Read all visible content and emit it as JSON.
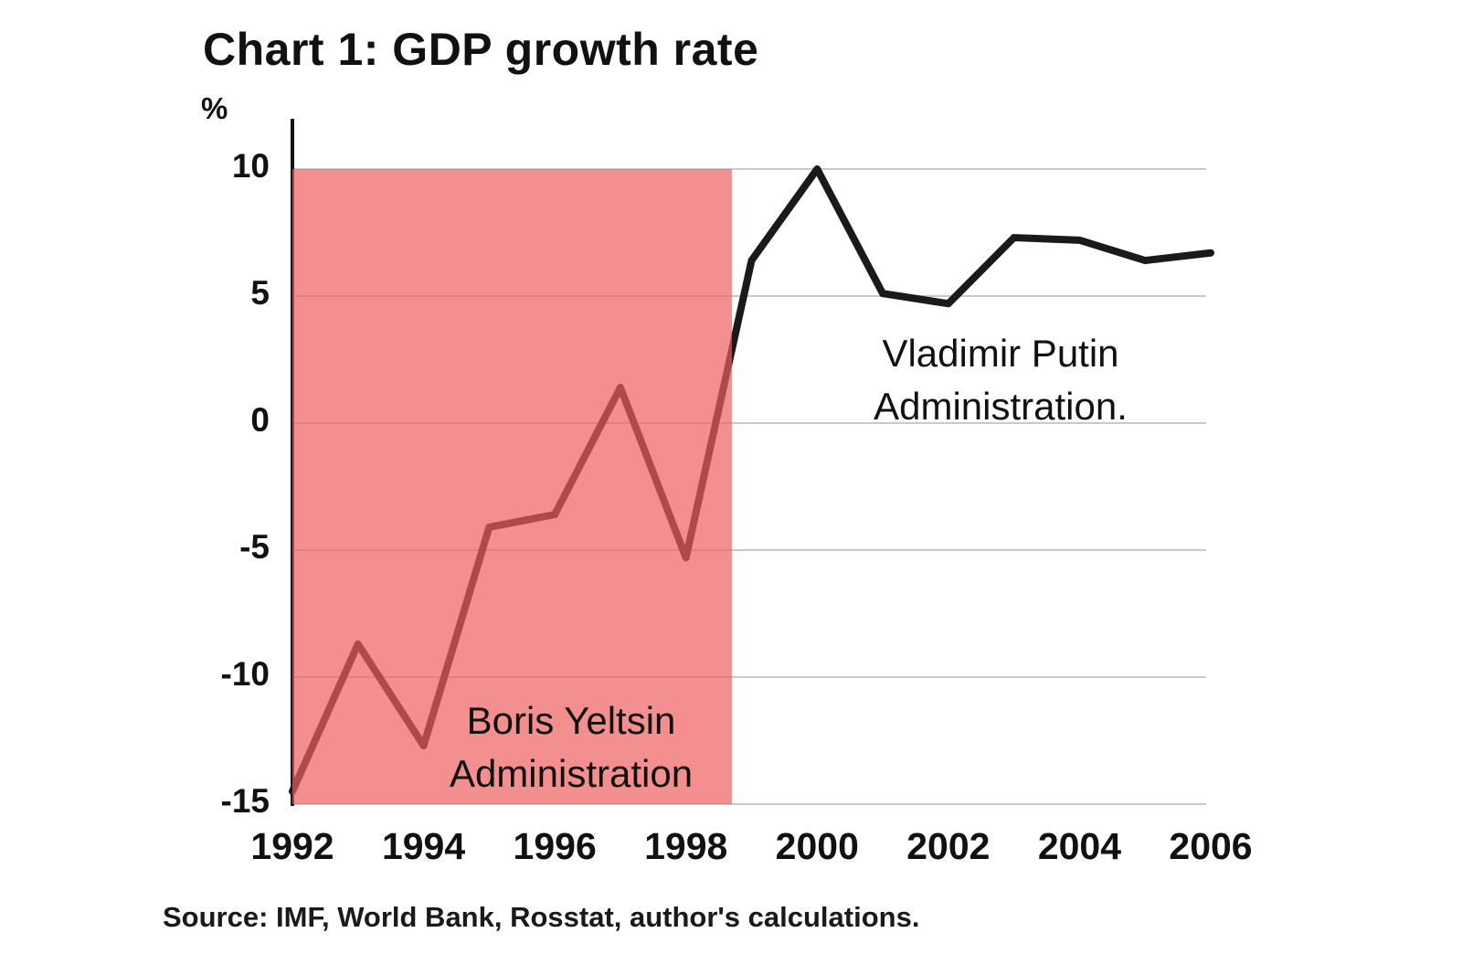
{
  "title": "Chart 1: GDP growth rate",
  "ylabel": "%",
  "source": "Source: IMF, World Bank, Rosstat, author's calculations.",
  "colors": {
    "line": "#1a1a1a",
    "shade": "#f05f5f",
    "shade_opacity": 0.7,
    "grid": "#c9c9c9",
    "axis": "#111111"
  },
  "chart_data": {
    "type": "line",
    "title": "Chart 1: GDP growth rate",
    "ylabel": "%",
    "x": [
      1992,
      1993,
      1994,
      1995,
      1996,
      1997,
      1998,
      1999,
      2000,
      2001,
      2002,
      2003,
      2004,
      2005,
      2006
    ],
    "values": [
      -14.5,
      -8.7,
      -12.7,
      -4.1,
      -3.6,
      1.4,
      -5.3,
      6.4,
      10.0,
      5.1,
      4.7,
      7.3,
      7.2,
      6.4,
      6.7
    ],
    "series_name": "GDP growth rate",
    "xlim": [
      1992,
      2006
    ],
    "ylim": [
      -15,
      10
    ],
    "yticks": [
      10,
      5,
      0,
      -5,
      -10,
      -15
    ],
    "xticks": [
      1992,
      1994,
      1996,
      1998,
      2000,
      2002,
      2004,
      2006
    ],
    "grid": "horizontal",
    "legend": "none",
    "shaded_region": {
      "x_start": 1992,
      "x_end": 1998.7,
      "y_top": 10,
      "y_bottom": -15
    },
    "annotations": {
      "putin": {
        "line1": "Vladimir Putin",
        "line2": "Administration."
      },
      "yeltsin": {
        "line1": "Boris Yeltsin",
        "line2": "Administration"
      }
    }
  }
}
